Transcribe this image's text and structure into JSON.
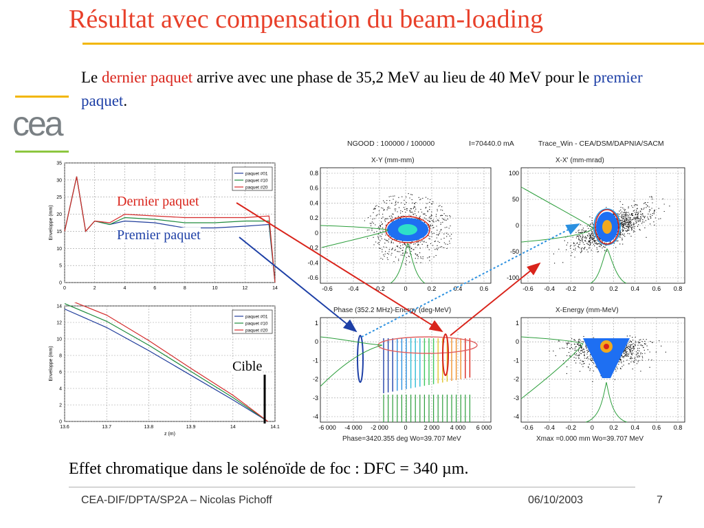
{
  "slide": {
    "title": "Résultat avec compensation du beam-loading",
    "intro": {
      "part1": "Le ",
      "highlight1": "dernier paquet",
      "part2": " arrive avec une phase de 35,2 MeV au lieu de 40 MeV pour le ",
      "highlight2": "premier paquet",
      "part3": "."
    },
    "logo_text": "cea",
    "bottom_text": "Effet chromatique dans le solénoïde de foc : DFC = 340 µm.",
    "footer": {
      "author": "CEA-DIF/DPTA/SP2A – Nicolas Pichoff",
      "date": "06/10/2003",
      "page": "7"
    },
    "colors": {
      "title": "#e8402a",
      "accent_rule": "#f2b600",
      "logo_green": "#8cc63f",
      "highlight_red": "#d9241b",
      "highlight_blue": "#1d3fa6"
    }
  },
  "callouts": {
    "dernier": "Dernier paquet",
    "premier": "Premier paquet",
    "cible": "Cible"
  },
  "tracewin": {
    "header": {
      "ngood": "NGOOD : 100000 / 100000",
      "current": "I=70440.0 mA",
      "source": "Trace_Win - CEA/DSM/DAPNIA/SACM"
    },
    "titles": {
      "xy": "X-Y (mm-mm)",
      "xxp": "X-X' (mm-mrad)",
      "phase": "Phase (352.2 MHz)-Energy (deg-MeV)",
      "xe": "X-Energy (mm-MeV)"
    },
    "footers": {
      "phase": "Phase=3420.355 deg  Wo=39.707 MeV",
      "xe": "Xmax =0.000 mm  Wo=39.707 MeV"
    }
  },
  "chart_data": [
    {
      "type": "line",
      "title": "",
      "xlabel": "",
      "ylabel": "Enveloppe (mm)",
      "xlim": [
        0,
        14
      ],
      "ylim": [
        0,
        35
      ],
      "xticks": [
        "0",
        "2",
        "4",
        "6",
        "8",
        "10",
        "12",
        "14"
      ],
      "yticks": [
        "0",
        "5",
        "10",
        "15",
        "20",
        "25",
        "30",
        "35"
      ],
      "legend": "top-right",
      "x": [
        0,
        0.8,
        1.4,
        2,
        3,
        4,
        6,
        8,
        10,
        12,
        13.6,
        14
      ],
      "series": [
        {
          "name": "paquet #01",
          "color": "#1f3c9b",
          "values": [
            15,
            31,
            15,
            18,
            17,
            18,
            17.5,
            16,
            16,
            16.5,
            17,
            0
          ]
        },
        {
          "name": "paquet #10",
          "color": "#1e8a3c",
          "values": [
            15,
            31,
            15,
            18,
            17,
            19,
            18.5,
            17.5,
            17.5,
            18,
            18,
            0
          ]
        },
        {
          "name": "paquet #20",
          "color": "#d42a2a",
          "values": [
            15,
            31,
            15,
            18,
            17.5,
            20,
            19.5,
            19,
            19,
            19,
            19.5,
            0
          ]
        }
      ]
    },
    {
      "type": "line",
      "title": "",
      "xlabel": "z (m)",
      "ylabel": "Enveloppe (mm)",
      "xlim": [
        13.6,
        14.1
      ],
      "ylim": [
        0,
        15
      ],
      "xticks": [
        "13.6",
        "13.7",
        "13.8",
        "13.9",
        "14",
        "14.1"
      ],
      "yticks": [
        "0",
        "2",
        "4",
        "6",
        "8",
        "10",
        "12",
        "14"
      ],
      "legend": "top-right",
      "x": [
        13.6,
        13.7,
        13.8,
        13.9,
        14.0,
        14.083
      ],
      "series": [
        {
          "name": "paquet #01",
          "color": "#1f3c9b",
          "values": [
            14.6,
            12.2,
            9.2,
            6.0,
            2.8,
            0
          ]
        },
        {
          "name": "paquet #10",
          "color": "#1e8a3c",
          "values": [
            15.3,
            13.0,
            9.9,
            6.5,
            3.1,
            0
          ]
        },
        {
          "name": "paquet #20",
          "color": "#d42a2a",
          "values": [
            16.0,
            13.8,
            10.5,
            6.9,
            3.4,
            0
          ]
        }
      ]
    },
    {
      "type": "scatter",
      "title": "X-Y (mm-mm)",
      "xlim": [
        -0.7,
        0.7
      ],
      "ylim": [
        -0.7,
        0.9
      ],
      "xticks": [
        "-0.6",
        "-0.4",
        "-0.2",
        "0",
        "0.2",
        "0.4",
        "0.6"
      ],
      "yticks": [
        "0.8",
        "0.6",
        "0.4",
        "0.2",
        "0",
        "-0.2",
        "-0.4",
        "-0.6"
      ]
    },
    {
      "type": "scatter",
      "title": "X-X' (mm-mrad)",
      "xlim": [
        -0.8,
        0.8
      ],
      "ylim": [
        -130,
        120
      ],
      "xticks": [
        "-0.6",
        "-0.4",
        "-0.2",
        "0",
        "0.2",
        "0.4",
        "0.6",
        "0.8"
      ],
      "yticks": [
        "100",
        "50",
        "0",
        "-50",
        "-100"
      ]
    },
    {
      "type": "scatter",
      "title": "Phase (352.2 MHz)-Energy (deg-MeV)",
      "xlim": [
        -7000,
        7000
      ],
      "ylim": [
        -4,
        1.5
      ],
      "xticks": [
        "-6 000",
        "-4 000",
        "-2 000",
        "0",
        "2 000",
        "4 000",
        "6 000"
      ],
      "yticks": [
        "1",
        "0",
        "-1",
        "-2",
        "-3",
        "-4"
      ]
    },
    {
      "type": "scatter",
      "title": "X-Energy (mm-MeV)",
      "xlim": [
        -0.8,
        0.9
      ],
      "ylim": [
        -4,
        1.5
      ],
      "xticks": [
        "-0.6",
        "-0.4",
        "-0.2",
        "0",
        "0.2",
        "0.4",
        "0.6",
        "0.8"
      ],
      "yticks": [
        "1",
        "0",
        "-1",
        "-2",
        "-3",
        "-4"
      ]
    }
  ]
}
